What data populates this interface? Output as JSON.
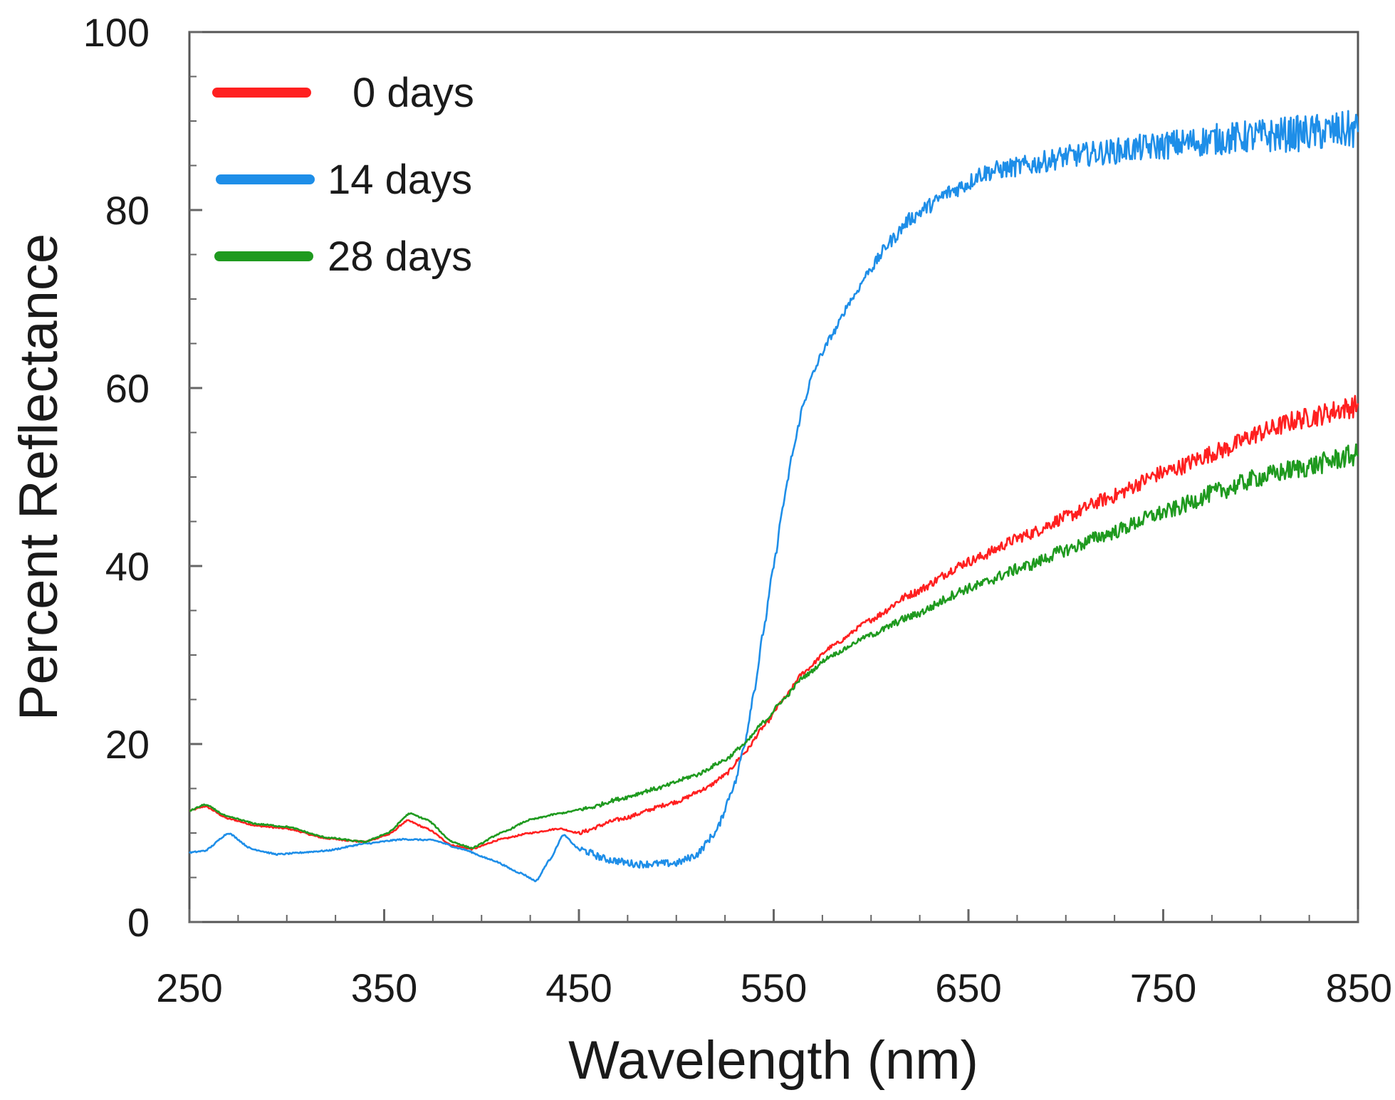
{
  "chart_data": {
    "type": "line",
    "title": "",
    "xlabel": "Wavelength (nm)",
    "ylabel": "Percent Reflectance",
    "xlim": [
      250,
      850
    ],
    "ylim": [
      0,
      100
    ],
    "x_ticks": [
      250,
      350,
      450,
      550,
      650,
      750,
      850
    ],
    "y_ticks": [
      0,
      20,
      40,
      60,
      80,
      100
    ],
    "x_tick_labels": [
      "250",
      "350",
      "450",
      "550",
      "650",
      "750",
      "850"
    ],
    "y_tick_labels": [
      "0",
      "20",
      "40",
      "60",
      "80",
      "100"
    ],
    "grid": false,
    "legend_position": "top-left",
    "series": [
      {
        "name": "0 days",
        "label": "  0 days",
        "color": "#ff2020",
        "noise": 0.9,
        "points": [
          [
            250,
            12.5
          ],
          [
            258,
            13.0
          ],
          [
            270,
            11.6
          ],
          [
            285,
            10.8
          ],
          [
            300,
            10.5
          ],
          [
            320,
            9.4
          ],
          [
            340,
            9.0
          ],
          [
            352,
            9.8
          ],
          [
            362,
            11.4
          ],
          [
            372,
            10.5
          ],
          [
            385,
            8.6
          ],
          [
            395,
            8.2
          ],
          [
            410,
            9.3
          ],
          [
            425,
            10.0
          ],
          [
            440,
            10.5
          ],
          [
            450,
            10.0
          ],
          [
            470,
            11.5
          ],
          [
            500,
            13.5
          ],
          [
            515,
            15.0
          ],
          [
            525,
            16.5
          ],
          [
            535,
            19.0
          ],
          [
            545,
            22.0
          ],
          [
            555,
            25.0
          ],
          [
            565,
            28.0
          ],
          [
            580,
            31.0
          ],
          [
            600,
            34.0
          ],
          [
            620,
            36.8
          ],
          [
            650,
            40.5
          ],
          [
            680,
            43.5
          ],
          [
            700,
            45.5
          ],
          [
            720,
            47.5
          ],
          [
            750,
            50.5
          ],
          [
            780,
            53.0
          ],
          [
            800,
            55.0
          ],
          [
            820,
            56.5
          ],
          [
            850,
            58.0
          ]
        ]
      },
      {
        "name": "14 days",
        "label": "14 days",
        "color": "#1e8ee8",
        "noise": 1.6,
        "points": [
          [
            250,
            7.8
          ],
          [
            258,
            8.0
          ],
          [
            270,
            10.0
          ],
          [
            282,
            8.2
          ],
          [
            295,
            7.6
          ],
          [
            320,
            8.0
          ],
          [
            340,
            8.8
          ],
          [
            360,
            9.3
          ],
          [
            375,
            9.2
          ],
          [
            390,
            8.2
          ],
          [
            405,
            7.0
          ],
          [
            420,
            5.5
          ],
          [
            428,
            4.6
          ],
          [
            435,
            7.0
          ],
          [
            442,
            9.8
          ],
          [
            450,
            8.2
          ],
          [
            465,
            7.0
          ],
          [
            480,
            6.5
          ],
          [
            500,
            6.6
          ],
          [
            510,
            7.5
          ],
          [
            520,
            10.0
          ],
          [
            530,
            15.5
          ],
          [
            535,
            20.0
          ],
          [
            540,
            26.0
          ],
          [
            545,
            33.0
          ],
          [
            550,
            40.0
          ],
          [
            555,
            47.0
          ],
          [
            560,
            53.0
          ],
          [
            565,
            58.0
          ],
          [
            570,
            61.5
          ],
          [
            575,
            64.0
          ],
          [
            580,
            66.0
          ],
          [
            590,
            70.0
          ],
          [
            600,
            73.5
          ],
          [
            610,
            76.5
          ],
          [
            620,
            79.0
          ],
          [
            630,
            80.5
          ],
          [
            640,
            82.0
          ],
          [
            650,
            83.0
          ],
          [
            655,
            84.0
          ],
          [
            665,
            84.5
          ],
          [
            680,
            85.0
          ],
          [
            700,
            86.0
          ],
          [
            720,
            86.5
          ],
          [
            740,
            87.0
          ],
          [
            760,
            87.5
          ],
          [
            780,
            88.0
          ],
          [
            800,
            88.3
          ],
          [
            820,
            88.6
          ],
          [
            850,
            89.0
          ]
        ]
      },
      {
        "name": "28 days",
        "label": "28 days",
        "color": "#1f9a1f",
        "noise": 0.9,
        "points": [
          [
            250,
            12.5
          ],
          [
            258,
            13.2
          ],
          [
            270,
            11.8
          ],
          [
            285,
            11.0
          ],
          [
            300,
            10.7
          ],
          [
            320,
            9.5
          ],
          [
            340,
            9.0
          ],
          [
            352,
            10.0
          ],
          [
            363,
            12.2
          ],
          [
            372,
            11.5
          ],
          [
            385,
            9.0
          ],
          [
            395,
            8.3
          ],
          [
            410,
            10.0
          ],
          [
            425,
            11.5
          ],
          [
            440,
            12.2
          ],
          [
            455,
            12.8
          ],
          [
            470,
            13.8
          ],
          [
            490,
            15.0
          ],
          [
            510,
            16.5
          ],
          [
            525,
            18.2
          ],
          [
            535,
            20.0
          ],
          [
            545,
            22.5
          ],
          [
            555,
            25.0
          ],
          [
            565,
            27.5
          ],
          [
            580,
            30.0
          ],
          [
            600,
            32.3
          ],
          [
            620,
            34.3
          ],
          [
            650,
            37.5
          ],
          [
            680,
            40.0
          ],
          [
            700,
            41.8
          ],
          [
            720,
            43.5
          ],
          [
            750,
            46.0
          ],
          [
            780,
            48.5
          ],
          [
            800,
            50.0
          ],
          [
            820,
            51.0
          ],
          [
            850,
            52.5
          ]
        ]
      }
    ]
  }
}
